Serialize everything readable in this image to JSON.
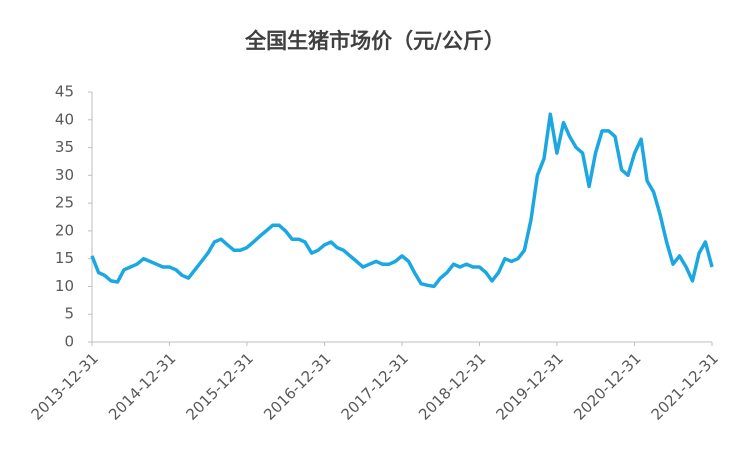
{
  "chart_data": {
    "type": "line",
    "title": "全国生猪市场价（元/公斤）",
    "x": [
      "2013-12-31",
      "2014-01-31",
      "2014-02-28",
      "2014-03-31",
      "2014-04-30",
      "2014-05-31",
      "2014-06-30",
      "2014-07-31",
      "2014-08-31",
      "2014-09-30",
      "2014-10-31",
      "2014-11-30",
      "2014-12-31",
      "2015-01-31",
      "2015-02-28",
      "2015-03-31",
      "2015-04-30",
      "2015-05-31",
      "2015-06-30",
      "2015-07-31",
      "2015-08-31",
      "2015-09-30",
      "2015-10-31",
      "2015-11-30",
      "2015-12-31",
      "2016-01-31",
      "2016-02-29",
      "2016-03-31",
      "2016-04-30",
      "2016-05-31",
      "2016-06-30",
      "2016-07-31",
      "2016-08-31",
      "2016-09-30",
      "2016-10-31",
      "2016-11-30",
      "2016-12-31",
      "2017-01-31",
      "2017-02-28",
      "2017-03-31",
      "2017-04-30",
      "2017-05-31",
      "2017-06-30",
      "2017-07-31",
      "2017-08-31",
      "2017-09-30",
      "2017-10-31",
      "2017-11-30",
      "2017-12-31",
      "2018-01-31",
      "2018-02-28",
      "2018-03-31",
      "2018-04-30",
      "2018-05-31",
      "2018-06-30",
      "2018-07-31",
      "2018-08-31",
      "2018-09-30",
      "2018-10-31",
      "2018-11-30",
      "2018-12-31",
      "2019-01-31",
      "2019-02-28",
      "2019-03-31",
      "2019-04-30",
      "2019-05-31",
      "2019-06-30",
      "2019-07-31",
      "2019-08-31",
      "2019-09-30",
      "2019-10-31",
      "2019-11-30",
      "2019-12-31",
      "2020-01-31",
      "2020-02-29",
      "2020-03-31",
      "2020-04-30",
      "2020-05-31",
      "2020-06-30",
      "2020-07-31",
      "2020-08-31",
      "2020-09-30",
      "2020-10-31",
      "2020-11-30",
      "2020-12-31",
      "2021-01-31",
      "2021-02-28",
      "2021-03-31",
      "2021-04-30",
      "2021-05-31",
      "2021-06-30",
      "2021-07-31",
      "2021-08-31",
      "2021-09-30",
      "2021-10-31",
      "2021-11-30",
      "2021-12-31"
    ],
    "series": [
      {
        "color": "#1ba8e2",
        "values": [
          15.5,
          12.5,
          12,
          11,
          10.8,
          13,
          13.5,
          14,
          15,
          14.5,
          14,
          13.5,
          13.5,
          13,
          12,
          11.5,
          13,
          14.5,
          16,
          18,
          18.5,
          17.5,
          16.5,
          16.5,
          17,
          18,
          19,
          20,
          21,
          21,
          20,
          18.5,
          18.5,
          18,
          16,
          16.5,
          17.5,
          18,
          17,
          16.5,
          15.5,
          14.5,
          13.5,
          14,
          14.5,
          14,
          14,
          14.5,
          15.5,
          14.5,
          12.5,
          10.5,
          10.2,
          10,
          11.5,
          12.5,
          14,
          13.5,
          14,
          13.5,
          13.5,
          12.5,
          11,
          12.5,
          15,
          14.5,
          15,
          16.5,
          22,
          30,
          33,
          41,
          34,
          39.5,
          37,
          35,
          34,
          28,
          34,
          38,
          38,
          37,
          31,
          30,
          34,
          36.5,
          29,
          27,
          23,
          18,
          14,
          15.5,
          13.5,
          11,
          16,
          18,
          13.5
        ]
      }
    ],
    "xlim": [
      "2013-12-31",
      "2021-12-31"
    ],
    "xticks": [
      "2013-12-31",
      "2014-12-31",
      "2015-12-31",
      "2016-12-31",
      "2017-12-31",
      "2018-12-31",
      "2019-12-31",
      "2020-12-31",
      "2021-12-31"
    ],
    "ylim": [
      0,
      45
    ],
    "yticks": [
      0,
      5,
      10,
      15,
      20,
      25,
      30,
      35,
      40,
      45
    ]
  }
}
